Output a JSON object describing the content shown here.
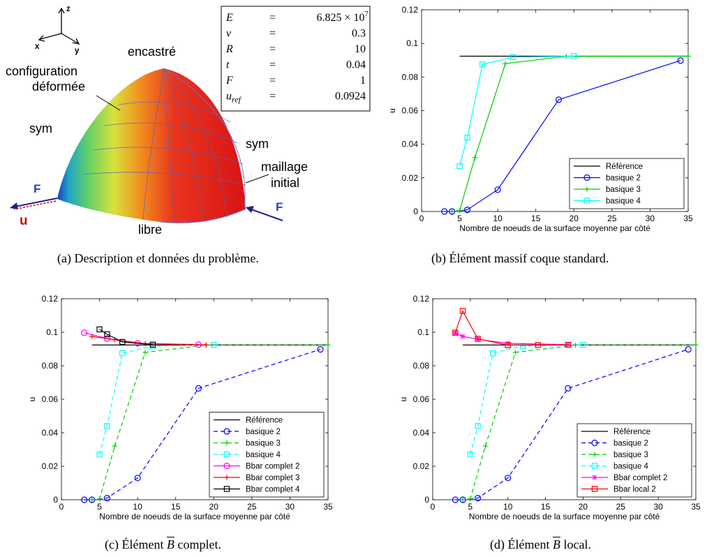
{
  "captions": {
    "a": "(a)  Description et données du problème.",
    "b": "(b)  Élément massif coque standard.",
    "c_pre": "(c)  Élément ",
    "c_b": "B",
    "c_post": " complet.",
    "d_pre": "(d)  Élément ",
    "d_b": "B",
    "d_post": " local."
  },
  "diagram": {
    "axes": {
      "x": "x",
      "y": "y",
      "z": "z"
    },
    "labels": {
      "encastre": "encastré",
      "config1": "configuration",
      "config2": "déformée",
      "sym_left": "sym",
      "sym_right": "sym",
      "mesh1": "maillage",
      "mesh2": "initial",
      "force_left": "F",
      "force_right": "F",
      "disp": "u",
      "libre": "libre"
    },
    "table": [
      {
        "sym": "E",
        "eq": "=",
        "val": "6.825 × 10",
        "exp": "7"
      },
      {
        "sym": "ν",
        "eq": "=",
        "val": "0.3"
      },
      {
        "sym": "R",
        "eq": "=",
        "val": "10"
      },
      {
        "sym": "t",
        "eq": "=",
        "val": "0.04"
      },
      {
        "sym": "F",
        "eq": "=",
        "val": "1"
      },
      {
        "sym": "u",
        "sub": "ref",
        "eq": "=",
        "val": "0.0924"
      }
    ]
  },
  "chart_data": [
    {
      "id": "b",
      "type": "line",
      "xlabel": "Nombre de noeuds de la surface moyenne par côté",
      "ylabel": "u",
      "xlim": [
        0,
        35
      ],
      "ylim": [
        0,
        0.12
      ],
      "xticks": [
        "0",
        "5",
        "10",
        "15",
        "20",
        "25",
        "30",
        "35"
      ],
      "yticks": [
        "0",
        "0.02",
        "0.04",
        "0.06",
        "0.08",
        "0.1",
        "0.12"
      ],
      "legend_position": "bottom-right",
      "series": [
        {
          "name": "Référence",
          "color": "#000000",
          "marker": "none",
          "dash": false,
          "x": [
            5,
            35
          ],
          "y": [
            0.0924,
            0.0924
          ]
        },
        {
          "name": "basique 2",
          "color": "#0000ff",
          "marker": "circle",
          "dash": false,
          "x": [
            3,
            4,
            6,
            10,
            18,
            34
          ],
          "y": [
            0,
            0,
            0.001,
            0.013,
            0.0665,
            0.0898
          ]
        },
        {
          "name": "basique 3",
          "color": "#00cc00",
          "marker": "plus",
          "dash": false,
          "x": [
            4,
            5,
            7,
            11,
            19,
            35
          ],
          "y": [
            0,
            0.0005,
            0.032,
            0.088,
            0.0923,
            0.0924
          ]
        },
        {
          "name": "basique 4",
          "color": "#00ffff",
          "marker": "square",
          "dash": false,
          "x": [
            5,
            6,
            8,
            12,
            20
          ],
          "y": [
            0.027,
            0.044,
            0.0875,
            0.0918,
            0.0924
          ]
        }
      ]
    },
    {
      "id": "c",
      "type": "line",
      "xlabel": "Nombre de noeuds de la surface moyenne par côté",
      "ylabel": "u",
      "xlim": [
        0,
        35
      ],
      "ylim": [
        0,
        0.12
      ],
      "xticks": [
        "0",
        "5",
        "10",
        "15",
        "20",
        "25",
        "30",
        "35"
      ],
      "yticks": [
        "0",
        "0.02",
        "0.04",
        "0.06",
        "0.08",
        "0.1",
        "0.12"
      ],
      "legend_position": "bottom-right",
      "series": [
        {
          "name": "Référence",
          "color": "#000000",
          "marker": "none",
          "dash": false,
          "x": [
            4,
            35
          ],
          "y": [
            0.0924,
            0.0924
          ]
        },
        {
          "name": "basique 2",
          "color": "#0000ff",
          "marker": "circle",
          "dash": true,
          "x": [
            3,
            4,
            6,
            10,
            18,
            34
          ],
          "y": [
            0,
            0,
            0.001,
            0.013,
            0.0665,
            0.0898
          ]
        },
        {
          "name": "basique 3",
          "color": "#00cc00",
          "marker": "plus",
          "dash": true,
          "x": [
            4,
            5,
            7,
            11,
            19,
            35
          ],
          "y": [
            0,
            0.0005,
            0.032,
            0.088,
            0.0923,
            0.0924
          ]
        },
        {
          "name": "basique 4",
          "color": "#00ffff",
          "marker": "square",
          "dash": true,
          "x": [
            5,
            6,
            8,
            12,
            20
          ],
          "y": [
            0.027,
            0.044,
            0.0875,
            0.0918,
            0.0924
          ]
        },
        {
          "name": "Bbar complet 2",
          "color": "#ff00ff",
          "marker": "circle",
          "dash": false,
          "x": [
            3,
            6,
            10,
            18
          ],
          "y": [
            0.0997,
            0.0963,
            0.0934,
            0.0926
          ]
        },
        {
          "name": "Bbar complet 3",
          "color": "#ff0000",
          "marker": "plus",
          "dash": false,
          "x": [
            4,
            7,
            11,
            19
          ],
          "y": [
            0.0975,
            0.0955,
            0.0932,
            0.0925
          ]
        },
        {
          "name": "Bbar complet 4",
          "color": "#000000",
          "marker": "square",
          "dash": false,
          "x": [
            5,
            6,
            8,
            12
          ],
          "y": [
            0.1017,
            0.0988,
            0.0942,
            0.0926
          ]
        }
      ]
    },
    {
      "id": "d",
      "type": "line",
      "xlabel": "Nombre de noeuds de la surface moyenne par côté",
      "ylabel": "u",
      "xlim": [
        0,
        35
      ],
      "ylim": [
        0,
        0.12
      ],
      "xticks": [
        "0",
        "5",
        "10",
        "15",
        "20",
        "25",
        "30",
        "35"
      ],
      "yticks": [
        "0",
        "0.02",
        "0.04",
        "0.06",
        "0.08",
        "0.1",
        "0.12"
      ],
      "legend_position": "bottom-right",
      "series": [
        {
          "name": "Référence",
          "color": "#000000",
          "marker": "none",
          "dash": false,
          "x": [
            4,
            35
          ],
          "y": [
            0.0924,
            0.0924
          ]
        },
        {
          "name": "basique 2",
          "color": "#0000ff",
          "marker": "circle",
          "dash": true,
          "x": [
            3,
            4,
            6,
            10,
            18,
            34
          ],
          "y": [
            0,
            0,
            0.001,
            0.013,
            0.0665,
            0.0898
          ]
        },
        {
          "name": "basique 3",
          "color": "#00cc00",
          "marker": "plus",
          "dash": true,
          "x": [
            4,
            5,
            7,
            11,
            19,
            35
          ],
          "y": [
            0,
            0.0005,
            0.032,
            0.088,
            0.0923,
            0.0924
          ]
        },
        {
          "name": "basique 4",
          "color": "#00ffff",
          "marker": "square",
          "dash": true,
          "x": [
            5,
            6,
            8,
            12,
            20
          ],
          "y": [
            0.027,
            0.044,
            0.0875,
            0.0918,
            0.0924
          ]
        },
        {
          "name": "Bbar complet 2",
          "color": "#ff00ff",
          "marker": "asterisk",
          "dash": false,
          "x": [
            3,
            4,
            6,
            10,
            18
          ],
          "y": [
            0.0995,
            0.0975,
            0.0958,
            0.0934,
            0.0926
          ]
        },
        {
          "name": "Bbar local 2",
          "color": "#ff0000",
          "marker": "square",
          "dash": false,
          "x": [
            3,
            4,
            6,
            10,
            14,
            18
          ],
          "y": [
            0.0997,
            0.1127,
            0.0961,
            0.0923,
            0.0924,
            0.0925
          ]
        }
      ]
    }
  ]
}
